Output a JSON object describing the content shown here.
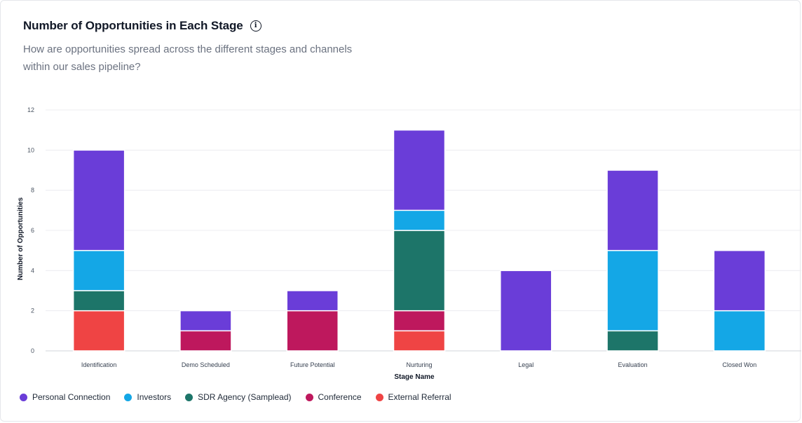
{
  "header": {
    "title": "Number of Opportunities in Each Stage",
    "info_icon": "info-icon",
    "subtitle": "How are opportunities spread across the different stages and channels within our sales pipeline?"
  },
  "chart_data": {
    "type": "bar",
    "stacked": true,
    "title": "Number of Opportunities in Each Stage",
    "xlabel": "Stage Name",
    "ylabel": "Number of Opportunities",
    "ylim": [
      0,
      12
    ],
    "yticks": [
      "0",
      "2",
      "4",
      "6",
      "8",
      "10",
      "12"
    ],
    "grid": true,
    "legend_position": "bottom-left",
    "categories": [
      "Identification",
      "Demo Scheduled",
      "Future Potential",
      "Nurturing",
      "Legal",
      "Evaluation",
      "Closed Won"
    ],
    "series": [
      {
        "name": "External Referral",
        "color": "#ef4444",
        "values": [
          2,
          0,
          0,
          1,
          0,
          0,
          0
        ]
      },
      {
        "name": "Conference",
        "color": "#be185d",
        "values": [
          0,
          1,
          2,
          1,
          0,
          0,
          0
        ]
      },
      {
        "name": "SDR Agency (Samplead)",
        "color": "#1d7569",
        "values": [
          1,
          0,
          0,
          4,
          0,
          1,
          0
        ]
      },
      {
        "name": "Investors",
        "color": "#14a7e6",
        "values": [
          2,
          0,
          0,
          1,
          0,
          4,
          2
        ]
      },
      {
        "name": "Personal Connection",
        "color": "#6a3dd8",
        "values": [
          5,
          1,
          1,
          4,
          4,
          4,
          3
        ]
      }
    ],
    "legend_order": [
      "Personal Connection",
      "Investors",
      "SDR Agency (Samplead)",
      "Conference",
      "External Referral"
    ]
  }
}
